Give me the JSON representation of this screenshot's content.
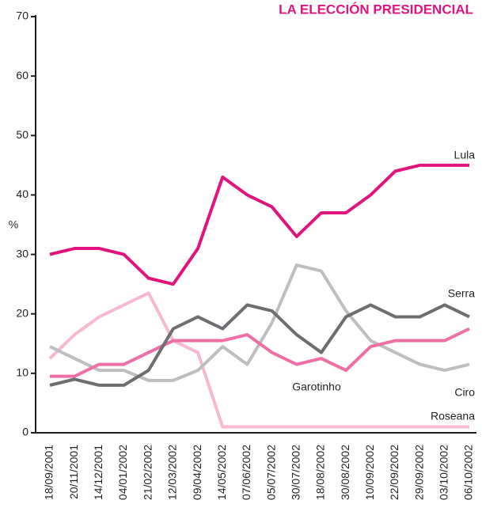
{
  "chart_data": {
    "type": "line",
    "title": "LA ELECCIÓN PRESIDENCIAL",
    "y_label": "%",
    "categories": [
      "18/09/2001",
      "20/11/2001",
      "14/12/2001",
      "04/01/2002",
      "21/02/2002",
      "12/03/2002",
      "09/04/2002",
      "14/05/2002",
      "07/06/2002",
      "05/07/2002",
      "30/07/2002",
      "18/08/2002",
      "30/08/2002",
      "10/09/2002",
      "22/09/2002",
      "29/09/2002",
      "03/10/2002",
      "06/10/2002"
    ],
    "series": [
      {
        "name": "Roseana",
        "color": "#f6b8d2",
        "values": [
          12.5,
          16.5,
          19.5,
          21.5,
          23.5,
          15.5,
          13.5,
          1,
          1,
          1,
          1,
          1,
          1,
          1,
          1,
          1,
          1,
          1
        ]
      },
      {
        "name": "Garotinho",
        "color": "#bcbec0",
        "values": [
          14.5,
          12.5,
          10.5,
          10.5,
          8.8,
          8.8,
          10.5,
          14.5,
          11.5,
          18.5,
          28.2,
          27.2,
          20.5,
          15.5,
          13.5,
          11.5,
          10.5,
          11.5
        ]
      },
      {
        "name": "Ciro",
        "color": "#ef6ea6",
        "values": [
          9.5,
          9.5,
          11.5,
          11.5,
          13.5,
          15.5,
          15.5,
          15.5,
          16.5,
          13.5,
          11.5,
          12.5,
          10.5,
          14.5,
          15.5,
          15.5,
          15.5,
          17.5
        ]
      },
      {
        "name": "Serra",
        "color": "#6d6e71",
        "values": [
          8,
          9,
          8,
          8,
          10.5,
          17.5,
          19.5,
          17.5,
          21.5,
          20.5,
          16.5,
          13.5,
          19.5,
          21.5,
          19.5,
          19.5,
          21.5,
          19.5
        ]
      },
      {
        "name": "Lula",
        "color": "#e2137f",
        "values": [
          30,
          31,
          31,
          30,
          26,
          25,
          31,
          43,
          40,
          38,
          33,
          37,
          37,
          40,
          44,
          45,
          45,
          45
        ]
      }
    ],
    "ylim": [
      0,
      70
    ],
    "yticks": [
      0,
      10,
      20,
      30,
      40,
      50,
      60,
      70
    ]
  }
}
